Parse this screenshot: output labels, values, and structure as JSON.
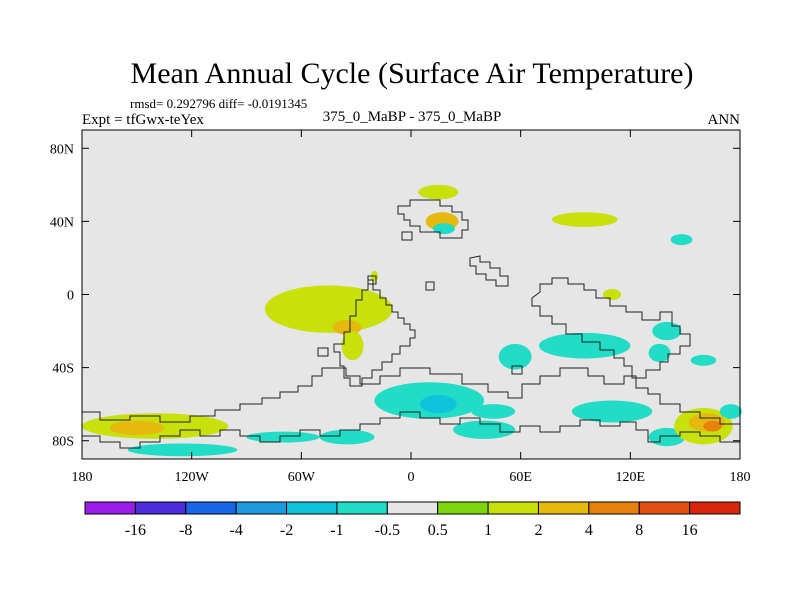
{
  "chart_data": {
    "type": "heatmap",
    "title": "Mean Annual Cycle (Surface Air Temperature)",
    "stats_line": "rmsd= 0.292796 diff= -0.0191345",
    "expt_label": "Expt = tfGwx-teYex",
    "subtitle": "375_0_MaBP - 375_0_MaBP",
    "season": "ANN",
    "xlabel": "",
    "ylabel": "",
    "xlim": [
      -180,
      180
    ],
    "ylim": [
      -90,
      90
    ],
    "x_ticks": [
      {
        "value": -180,
        "label": "180"
      },
      {
        "value": -120,
        "label": "120W"
      },
      {
        "value": -60,
        "label": "60W"
      },
      {
        "value": 0,
        "label": "0"
      },
      {
        "value": 60,
        "label": "60E"
      },
      {
        "value": 120,
        "label": "120E"
      },
      {
        "value": 180,
        "label": "180"
      }
    ],
    "y_ticks": [
      {
        "value": 80,
        "label": "80N"
      },
      {
        "value": 40,
        "label": "40N"
      },
      {
        "value": 0,
        "label": "0"
      },
      {
        "value": -40,
        "label": "40S"
      },
      {
        "value": -80,
        "label": "80S"
      }
    ],
    "colorbar": {
      "labels": [
        "-16",
        "-8",
        "-4",
        "-2",
        "-1",
        "-0.5",
        "0.5",
        "1",
        "2",
        "4",
        "8",
        "16"
      ],
      "colors": [
        "#9b1ee8",
        "#4b2ddb",
        "#1a64e6",
        "#1e9be0",
        "#10c3dc",
        "#22dcc6",
        "#e6e6e6",
        "#7ed70e",
        "#c8e10a",
        "#e6b90e",
        "#e8820e",
        "#e34f10",
        "#d8260c"
      ]
    },
    "regions": [
      {
        "level": "1",
        "center": [
          -140,
          -72
        ],
        "size": [
          80,
          14
        ]
      },
      {
        "level": "2",
        "center": [
          -150,
          -73
        ],
        "size": [
          30,
          8
        ]
      },
      {
        "level": "-0.5",
        "center": [
          -125,
          -85
        ],
        "size": [
          60,
          7
        ]
      },
      {
        "level": "-0.5",
        "center": [
          -70,
          -78
        ],
        "size": [
          40,
          6
        ]
      },
      {
        "level": "1",
        "center": [
          -45,
          -8
        ],
        "size": [
          70,
          26
        ]
      },
      {
        "level": "2",
        "center": [
          -35,
          -18
        ],
        "size": [
          16,
          8
        ]
      },
      {
        "level": "1",
        "center": [
          -32,
          -28
        ],
        "size": [
          12,
          16
        ]
      },
      {
        "level": "1",
        "center": [
          15,
          56
        ],
        "size": [
          22,
          8
        ]
      },
      {
        "level": "2",
        "center": [
          17,
          40
        ],
        "size": [
          18,
          10
        ]
      },
      {
        "level": "-0.5",
        "center": [
          18,
          36
        ],
        "size": [
          12,
          6
        ]
      },
      {
        "level": "1",
        "center": [
          95,
          41
        ],
        "size": [
          36,
          8
        ]
      },
      {
        "level": "-0.5",
        "center": [
          148,
          30
        ],
        "size": [
          12,
          6
        ]
      },
      {
        "level": "1",
        "center": [
          -20,
          10
        ],
        "size": [
          4,
          6
        ]
      },
      {
        "level": "1",
        "center": [
          110,
          0
        ],
        "size": [
          10,
          6
        ]
      },
      {
        "level": "-0.5",
        "center": [
          95,
          -28
        ],
        "size": [
          50,
          14
        ]
      },
      {
        "level": "-0.5",
        "center": [
          57,
          -34
        ],
        "size": [
          18,
          14
        ]
      },
      {
        "level": "-0.5",
        "center": [
          140,
          -20
        ],
        "size": [
          16,
          10
        ]
      },
      {
        "level": "-0.5",
        "center": [
          136,
          -32
        ],
        "size": [
          12,
          10
        ]
      },
      {
        "level": "-0.5",
        "center": [
          160,
          -36
        ],
        "size": [
          14,
          6
        ]
      },
      {
        "level": "-0.5",
        "center": [
          10,
          -58
        ],
        "size": [
          60,
          20
        ]
      },
      {
        "level": "-1",
        "center": [
          15,
          -60
        ],
        "size": [
          20,
          10
        ]
      },
      {
        "level": "-0.5",
        "center": [
          -35,
          -78
        ],
        "size": [
          30,
          8
        ]
      },
      {
        "level": "-0.5",
        "center": [
          45,
          -64
        ],
        "size": [
          24,
          8
        ]
      },
      {
        "level": "-0.5",
        "center": [
          40,
          -74
        ],
        "size": [
          34,
          10
        ]
      },
      {
        "level": "-0.5",
        "center": [
          110,
          -64
        ],
        "size": [
          44,
          12
        ]
      },
      {
        "level": "-0.5",
        "center": [
          140,
          -78
        ],
        "size": [
          20,
          10
        ]
      },
      {
        "level": "1",
        "center": [
          160,
          -72
        ],
        "size": [
          32,
          20
        ]
      },
      {
        "level": "2",
        "center": [
          162,
          -70
        ],
        "size": [
          20,
          10
        ]
      },
      {
        "level": "4",
        "center": [
          165,
          -72
        ],
        "size": [
          10,
          6
        ]
      },
      {
        "level": "-0.5",
        "center": [
          175,
          -64
        ],
        "size": [
          12,
          8
        ]
      }
    ]
  }
}
